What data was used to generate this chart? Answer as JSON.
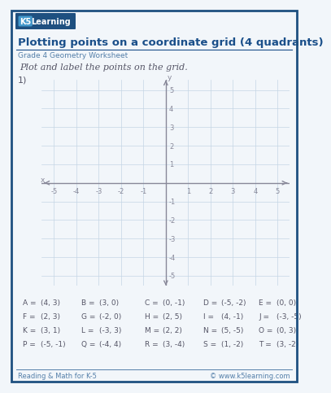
{
  "title": "Plotting points on a coordinate grid (4 quadrants)",
  "subtitle": "Grade 4 Geometry Worksheet",
  "instruction": "Plot and label the points on the grid.",
  "problem_number": "1)",
  "bg_color": "#f2f6fa",
  "border_color": "#1e5080",
  "grid_color": "#c5d5e5",
  "axis_color": "#888899",
  "title_color": "#1a4f8a",
  "subtitle_color": "#5580aa",
  "text_color": "#555566",
  "footer_color": "#5580aa",
  "axis_range": [
    -5,
    5
  ],
  "legend_rows": [
    [
      [
        "A",
        [
          4,
          3
        ]
      ],
      [
        "B",
        [
          3,
          0
        ]
      ],
      [
        "C",
        [
          0,
          -1
        ]
      ],
      [
        "D",
        [
          -5,
          -2
        ]
      ],
      [
        "E",
        [
          0,
          0
        ]
      ]
    ],
    [
      [
        "F",
        [
          2,
          3
        ]
      ],
      [
        "G",
        [
          -2,
          0
        ]
      ],
      [
        "H",
        [
          2,
          5
        ]
      ],
      [
        "I",
        [
          4,
          -1
        ]
      ],
      [
        "J",
        [
          -3,
          -5
        ]
      ]
    ],
    [
      [
        "K",
        [
          3,
          1
        ]
      ],
      [
        "L",
        [
          -3,
          3
        ]
      ],
      [
        "M",
        [
          2,
          2
        ]
      ],
      [
        "N",
        [
          5,
          -5
        ]
      ],
      [
        "O",
        [
          0,
          3
        ]
      ]
    ],
    [
      [
        "P",
        [
          -5,
          -1
        ]
      ],
      [
        "Q",
        [
          -4,
          4
        ]
      ],
      [
        "R",
        [
          3,
          -4
        ]
      ],
      [
        "S",
        [
          1,
          -2
        ]
      ],
      [
        "T",
        [
          3,
          -2
        ]
      ]
    ]
  ],
  "footer_left": "Reading & Math for K-5",
  "footer_right": "© www.k5learning.com"
}
